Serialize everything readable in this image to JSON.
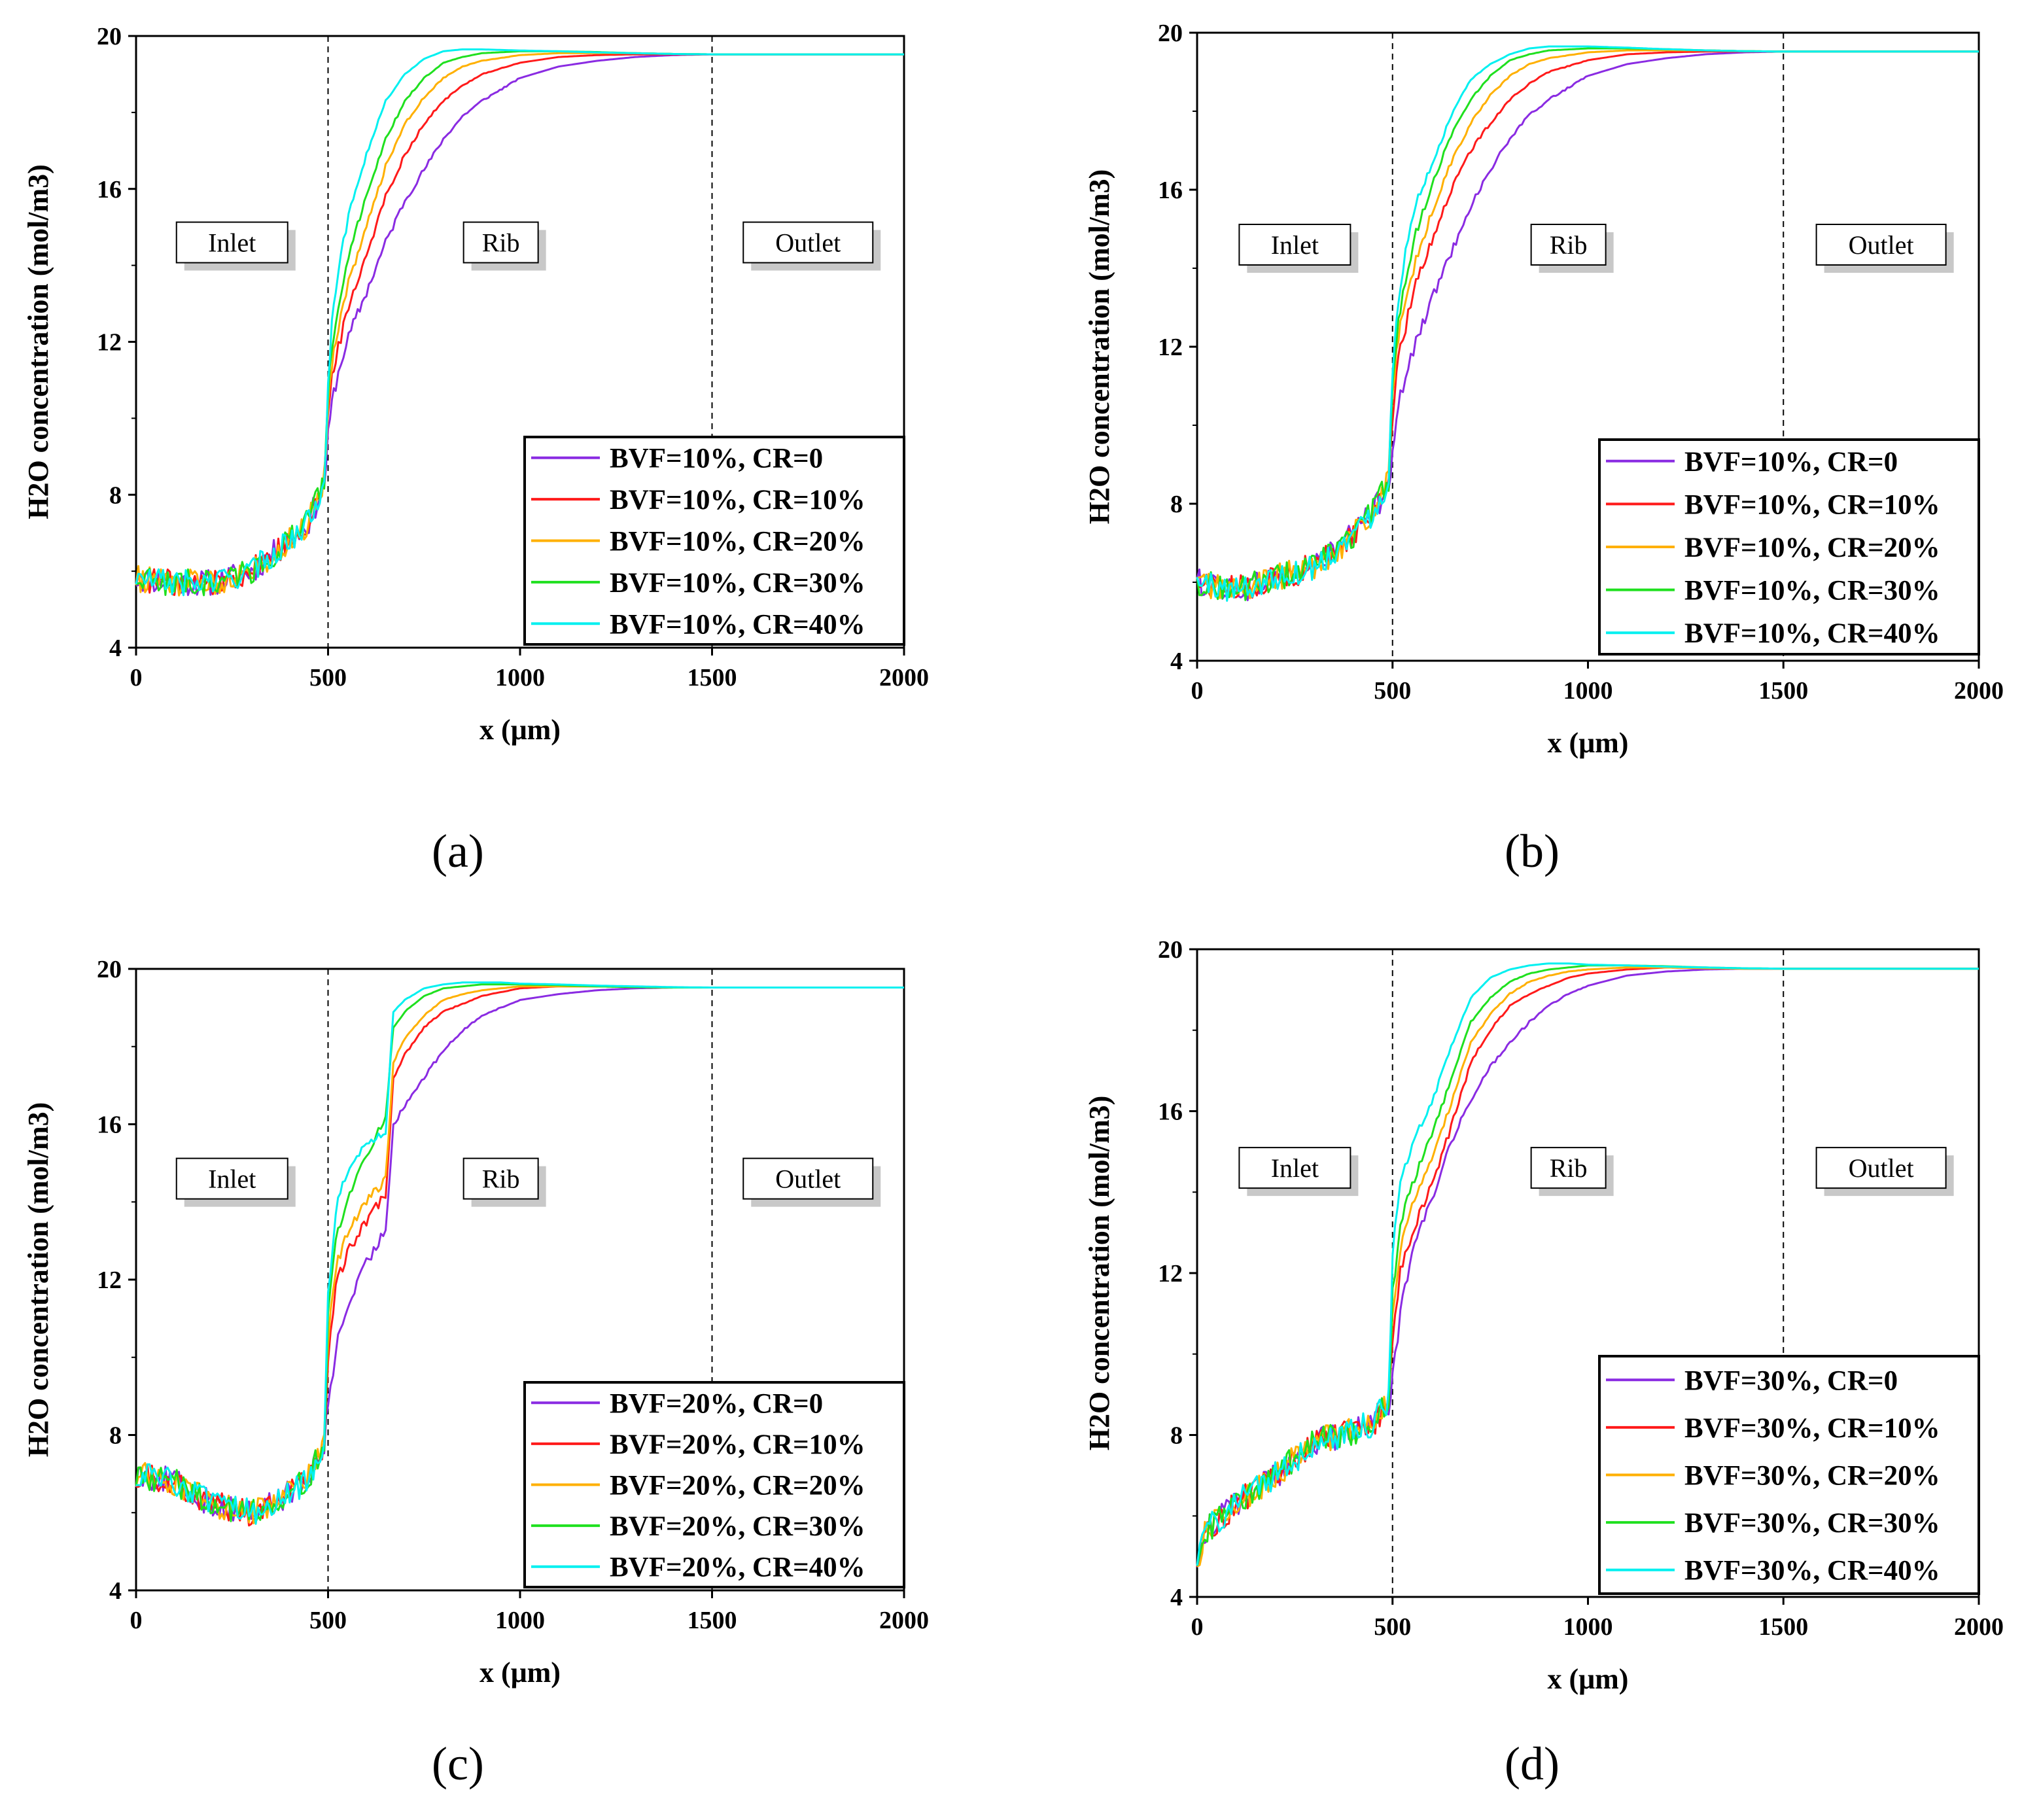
{
  "chart_data": [
    {
      "panel": "(a)",
      "type": "line",
      "xlabel": "x (μm)",
      "ylabel": "H2O concentration (mol/m3)",
      "xlim": [
        0,
        2000
      ],
      "ylim": [
        4,
        20
      ],
      "xticks": [
        0,
        500,
        1000,
        1500,
        2000
      ],
      "yticks": [
        4,
        8,
        12,
        16,
        20
      ],
      "boundaries": [
        500,
        1500
      ],
      "regions": [
        {
          "label": "Inlet",
          "x": 250,
          "y": 14.6
        },
        {
          "label": "Rib",
          "x": 950,
          "y": 14.6
        },
        {
          "label": "Outlet",
          "x": 1750,
          "y": 14.6
        }
      ],
      "x": [
        0,
        100,
        200,
        300,
        400,
        450,
        490,
        500,
        510,
        520,
        540,
        560,
        600,
        650,
        700,
        750,
        800,
        850,
        900,
        1000,
        1100,
        1200,
        1300,
        1400,
        1500,
        1700,
        2000
      ],
      "series": [
        {
          "name": "BVF=10%, CR=0",
          "color": "#8A2BE2",
          "values": [
            5.8,
            5.7,
            5.7,
            6.0,
            6.8,
            7.3,
            8.3,
            9.5,
            10.4,
            10.9,
            11.7,
            12.3,
            13.3,
            14.6,
            15.7,
            16.5,
            17.3,
            17.9,
            18.3,
            18.9,
            19.2,
            19.35,
            19.45,
            19.5,
            19.52,
            19.52,
            19.52
          ]
        },
        {
          "name": "BVF=10%, CR=10%",
          "color": "#FF1A1A",
          "values": [
            5.8,
            5.7,
            5.7,
            6.0,
            6.8,
            7.3,
            8.4,
            10.0,
            11.0,
            11.6,
            12.4,
            13.1,
            14.3,
            15.8,
            16.9,
            17.7,
            18.3,
            18.7,
            19.0,
            19.3,
            19.45,
            19.5,
            19.52,
            19.52,
            19.52,
            19.52,
            19.52
          ]
        },
        {
          "name": "BVF=10%, CR=20%",
          "color": "#FFB000",
          "values": [
            5.8,
            5.7,
            5.7,
            6.0,
            6.8,
            7.3,
            8.4,
            10.3,
            11.4,
            12.1,
            13.0,
            13.8,
            15.0,
            16.6,
            17.7,
            18.4,
            18.9,
            19.2,
            19.35,
            19.5,
            19.55,
            19.55,
            19.55,
            19.53,
            19.52,
            19.52,
            19.52
          ]
        },
        {
          "name": "BVF=10%, CR=30%",
          "color": "#1FE01F",
          "values": [
            5.8,
            5.7,
            5.7,
            6.0,
            6.8,
            7.3,
            8.4,
            10.6,
            11.8,
            12.6,
            13.6,
            14.5,
            15.8,
            17.3,
            18.3,
            18.9,
            19.3,
            19.45,
            19.55,
            19.6,
            19.6,
            19.58,
            19.55,
            19.53,
            19.52,
            19.52,
            19.52
          ]
        },
        {
          "name": "BVF=10%, CR=40%",
          "color": "#00F0F0",
          "values": [
            5.8,
            5.7,
            5.7,
            6.0,
            6.8,
            7.3,
            8.4,
            11.0,
            12.5,
            13.4,
            14.6,
            15.6,
            16.9,
            18.3,
            19.0,
            19.4,
            19.6,
            19.65,
            19.65,
            19.62,
            19.6,
            19.57,
            19.55,
            19.53,
            19.52,
            19.52,
            19.52
          ]
        }
      ]
    },
    {
      "panel": "(b)",
      "type": "line",
      "xlabel": "x (μm)",
      "ylabel": "H2O concentration (mol/m3)",
      "xlim": [
        0,
        2000
      ],
      "ylim": [
        4,
        20
      ],
      "xticks": [
        0,
        500,
        1000,
        1500,
        2000
      ],
      "yticks": [
        4,
        8,
        12,
        16,
        20
      ],
      "boundaries": [
        500,
        1500
      ],
      "regions": [
        {
          "label": "Inlet",
          "x": 250,
          "y": 14.6
        },
        {
          "label": "Rib",
          "x": 950,
          "y": 14.6
        },
        {
          "label": "Outlet",
          "x": 1750,
          "y": 14.6
        }
      ],
      "x": [
        0,
        100,
        200,
        300,
        400,
        450,
        490,
        500,
        510,
        520,
        540,
        560,
        600,
        650,
        700,
        750,
        800,
        850,
        900,
        1000,
        1100,
        1200,
        1300,
        1400,
        1500,
        1700,
        2000
      ],
      "series": [
        {
          "name": "BVF=10%, CR=0",
          "color": "#8A2BE2",
          "values": [
            6.0,
            5.8,
            6.1,
            6.4,
            7.2,
            7.8,
            8.5,
            9.5,
            10.2,
            10.7,
            11.5,
            12.1,
            13.2,
            14.4,
            15.6,
            16.5,
            17.3,
            17.9,
            18.3,
            18.9,
            19.2,
            19.35,
            19.45,
            19.5,
            19.52,
            19.52,
            19.52
          ]
        },
        {
          "name": "BVF=10%, CR=10%",
          "color": "#FF1A1A",
          "values": [
            6.0,
            5.8,
            6.1,
            6.4,
            7.2,
            7.8,
            8.6,
            10.3,
            11.3,
            11.9,
            12.8,
            13.6,
            14.7,
            16.0,
            17.0,
            17.7,
            18.3,
            18.7,
            19.0,
            19.3,
            19.45,
            19.5,
            19.52,
            19.52,
            19.52,
            19.52,
            19.52
          ]
        },
        {
          "name": "BVF=10%, CR=20%",
          "color": "#FFB000",
          "values": [
            6.0,
            5.8,
            6.1,
            6.4,
            7.2,
            7.8,
            8.6,
            10.7,
            11.8,
            12.5,
            13.4,
            14.2,
            15.4,
            16.7,
            17.7,
            18.4,
            18.9,
            19.2,
            19.35,
            19.5,
            19.55,
            19.55,
            19.55,
            19.53,
            19.52,
            19.52,
            19.52
          ]
        },
        {
          "name": "BVF=10%, CR=30%",
          "color": "#1FE01F",
          "values": [
            6.0,
            5.8,
            6.1,
            6.4,
            7.2,
            7.8,
            8.6,
            11.0,
            12.2,
            13.0,
            14.0,
            14.9,
            16.1,
            17.4,
            18.3,
            18.9,
            19.3,
            19.45,
            19.55,
            19.6,
            19.6,
            19.58,
            19.55,
            19.53,
            19.52,
            19.52,
            19.52
          ]
        },
        {
          "name": "BVF=10%, CR=40%",
          "color": "#00F0F0",
          "values": [
            6.0,
            5.8,
            6.1,
            6.4,
            7.2,
            7.8,
            8.6,
            11.3,
            12.7,
            13.6,
            14.8,
            15.7,
            16.6,
            17.9,
            18.8,
            19.2,
            19.45,
            19.6,
            19.65,
            19.65,
            19.62,
            19.58,
            19.55,
            19.53,
            19.52,
            19.52,
            19.52
          ]
        }
      ]
    },
    {
      "panel": "(c)",
      "type": "line",
      "xlabel": "x (μm)",
      "ylabel": "H2O concentration (mol/m3)",
      "xlim": [
        0,
        2000
      ],
      "ylim": [
        4,
        20
      ],
      "xticks": [
        0,
        500,
        1000,
        1500,
        2000
      ],
      "yticks": [
        4,
        8,
        12,
        16,
        20
      ],
      "boundaries": [
        500,
        1500
      ],
      "regions": [
        {
          "label": "Inlet",
          "x": 250,
          "y": 14.6
        },
        {
          "label": "Rib",
          "x": 950,
          "y": 14.6
        },
        {
          "label": "Outlet",
          "x": 1750,
          "y": 14.6
        }
      ],
      "x": [
        0,
        100,
        200,
        300,
        400,
        450,
        490,
        500,
        520,
        550,
        600,
        650,
        670,
        700,
        750,
        800,
        850,
        900,
        950,
        1000,
        1100,
        1200,
        1300,
        1400,
        1500,
        1700,
        2000
      ],
      "series": [
        {
          "name": "BVF=20%, CR=0",
          "color": "#8A2BE2",
          "values": [
            7.0,
            6.8,
            6.2,
            6.0,
            6.5,
            6.9,
            7.7,
            8.8,
            10.2,
            11.3,
            12.4,
            13.3,
            16.0,
            16.5,
            17.2,
            17.9,
            18.4,
            18.8,
            19.0,
            19.2,
            19.35,
            19.45,
            19.5,
            19.52,
            19.52,
            19.52,
            19.52
          ]
        },
        {
          "name": "BVF=20%, CR=10%",
          "color": "#FF1A1A",
          "values": [
            7.0,
            6.8,
            6.2,
            6.0,
            6.5,
            6.9,
            7.8,
            10.0,
            11.8,
            12.7,
            13.5,
            14.2,
            17.2,
            17.8,
            18.5,
            18.9,
            19.1,
            19.3,
            19.4,
            19.5,
            19.55,
            19.55,
            19.53,
            19.52,
            19.52,
            19.52,
            19.52
          ]
        },
        {
          "name": "BVF=20%, CR=20%",
          "color": "#FFB000",
          "values": [
            7.0,
            6.8,
            6.2,
            6.0,
            6.5,
            6.9,
            7.8,
            10.5,
            12.3,
            13.2,
            14.0,
            14.6,
            17.6,
            18.2,
            18.8,
            19.2,
            19.35,
            19.45,
            19.5,
            19.55,
            19.55,
            19.55,
            19.53,
            19.52,
            19.52,
            19.52,
            19.52
          ]
        },
        {
          "name": "BVF=20%, CR=30%",
          "color": "#1FE01F",
          "values": [
            7.0,
            6.8,
            6.2,
            6.0,
            6.5,
            6.9,
            7.9,
            11.0,
            13.0,
            14.0,
            15.2,
            16.2,
            18.5,
            18.9,
            19.3,
            19.5,
            19.55,
            19.6,
            19.6,
            19.6,
            19.58,
            19.55,
            19.53,
            19.52,
            19.52,
            19.52,
            19.52
          ]
        },
        {
          "name": "BVF=20%, CR=40%",
          "color": "#00F0F0",
          "values": [
            7.0,
            6.8,
            6.2,
            6.0,
            6.5,
            6.9,
            7.9,
            11.6,
            13.8,
            14.8,
            15.5,
            15.8,
            18.9,
            19.2,
            19.5,
            19.6,
            19.65,
            19.65,
            19.65,
            19.62,
            19.6,
            19.57,
            19.55,
            19.53,
            19.52,
            19.52,
            19.52
          ]
        }
      ]
    },
    {
      "panel": "(d)",
      "type": "line",
      "xlabel": "x (μm)",
      "ylabel": "H2O concentration (mol/m3)",
      "xlim": [
        0,
        2000
      ],
      "ylim": [
        4,
        20
      ],
      "xticks": [
        0,
        500,
        1000,
        1500,
        2000
      ],
      "yticks": [
        4,
        8,
        12,
        16,
        20
      ],
      "boundaries": [
        500,
        1500
      ],
      "regions": [
        {
          "label": "Inlet",
          "x": 250,
          "y": 14.6
        },
        {
          "label": "Rib",
          "x": 950,
          "y": 14.6
        },
        {
          "label": "Outlet",
          "x": 1750,
          "y": 14.6
        }
      ],
      "x": [
        0,
        20,
        100,
        200,
        300,
        400,
        450,
        490,
        500,
        520,
        550,
        600,
        650,
        700,
        750,
        800,
        850,
        900,
        950,
        1000,
        1100,
        1200,
        1300,
        1400,
        1500,
        1700,
        2000
      ],
      "series": [
        {
          "name": "BVF=30%, CR=0",
          "color": "#8A2BE2",
          "values": [
            4.8,
            5.6,
            6.3,
            7.0,
            7.8,
            8.1,
            8.3,
            8.7,
            9.5,
            11.0,
            12.5,
            13.8,
            15.2,
            16.3,
            17.1,
            17.7,
            18.2,
            18.6,
            18.9,
            19.1,
            19.35,
            19.45,
            19.5,
            19.52,
            19.52,
            19.52,
            19.52
          ]
        },
        {
          "name": "BVF=30%, CR=10%",
          "color": "#FF1A1A",
          "values": [
            4.8,
            5.6,
            6.3,
            7.0,
            7.8,
            8.1,
            8.3,
            8.8,
            10.5,
            12.0,
            13.0,
            14.2,
            15.6,
            17.2,
            18.0,
            18.6,
            18.9,
            19.1,
            19.3,
            19.4,
            19.5,
            19.55,
            19.53,
            19.52,
            19.52,
            19.52,
            19.52
          ]
        },
        {
          "name": "BVF=30%, CR=20%",
          "color": "#FFB000",
          "values": [
            4.8,
            5.6,
            6.3,
            7.0,
            7.8,
            8.1,
            8.3,
            8.8,
            11.0,
            12.6,
            13.6,
            14.8,
            16.2,
            17.7,
            18.4,
            18.9,
            19.2,
            19.35,
            19.45,
            19.5,
            19.55,
            19.55,
            19.53,
            19.52,
            19.52,
            19.52,
            19.52
          ]
        },
        {
          "name": "BVF=30%, CR=30%",
          "color": "#1FE01F",
          "values": [
            4.8,
            5.6,
            6.3,
            7.0,
            7.8,
            8.1,
            8.3,
            8.9,
            11.5,
            13.2,
            14.2,
            15.4,
            16.8,
            18.2,
            18.8,
            19.2,
            19.4,
            19.5,
            19.55,
            19.6,
            19.6,
            19.58,
            19.55,
            19.53,
            19.52,
            19.52,
            19.52
          ]
        },
        {
          "name": "BVF=30%, CR=40%",
          "color": "#00F0F0",
          "values": [
            4.8,
            5.6,
            6.3,
            7.0,
            7.8,
            8.1,
            8.3,
            8.9,
            12.5,
            14.2,
            15.2,
            16.2,
            17.6,
            18.8,
            19.3,
            19.5,
            19.6,
            19.65,
            19.65,
            19.62,
            19.6,
            19.57,
            19.55,
            19.53,
            19.52,
            19.52,
            19.52
          ]
        }
      ]
    }
  ]
}
